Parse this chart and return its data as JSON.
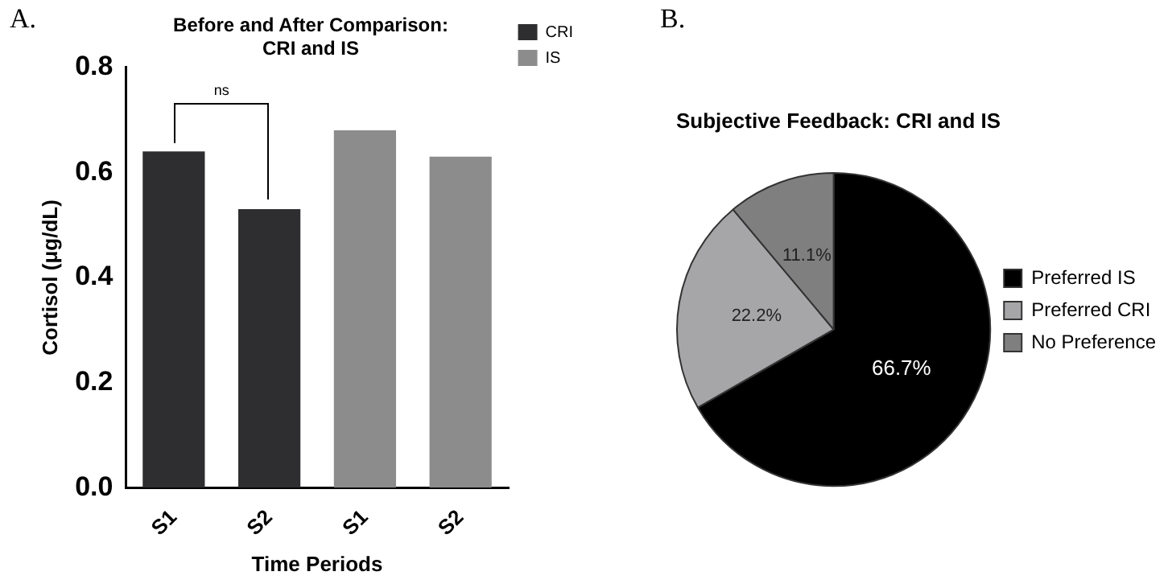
{
  "chart_data": [
    {
      "type": "bar",
      "title": "Before and After Comparison:\nCRI and IS",
      "xlabel": "Time Periods",
      "ylabel": "Cortisol (μg/dL)",
      "categories": [
        "S1",
        "S2",
        "S1",
        "S2"
      ],
      "series": [
        {
          "name": "CRI",
          "color": "#2e2e30",
          "values": [
            0.64,
            0.53,
            null,
            null
          ]
        },
        {
          "name": "IS",
          "color": "#8c8c8c",
          "values": [
            null,
            null,
            0.68,
            0.63
          ]
        }
      ],
      "ylim": [
        0,
        0.8
      ],
      "yticks": [
        {
          "value": 0,
          "label": "0.0"
        },
        {
          "value": 0.2,
          "label": "0.2"
        },
        {
          "value": 0.4,
          "label": "0.4"
        },
        {
          "value": 0.6,
          "label": "0.6"
        },
        {
          "value": 0.8,
          "label": "0.8"
        }
      ],
      "grid": false,
      "legend": "top right",
      "annotations": [
        "A.",
        "ns"
      ]
    },
    {
      "type": "pie",
      "title": "Subjective Feedback: CRI and IS",
      "categories": [
        "Preferred IS",
        "Preferred CRI",
        "No Preference"
      ],
      "values": [
        66.7,
        22.2,
        11.1
      ],
      "colors": [
        "#000000",
        "#a6a6a8",
        "#7f7f7f"
      ],
      "value_labels": [
        "66.7%",
        "22.2%",
        "11.1%"
      ],
      "legend": "right",
      "annotations": [
        "B."
      ]
    }
  ]
}
